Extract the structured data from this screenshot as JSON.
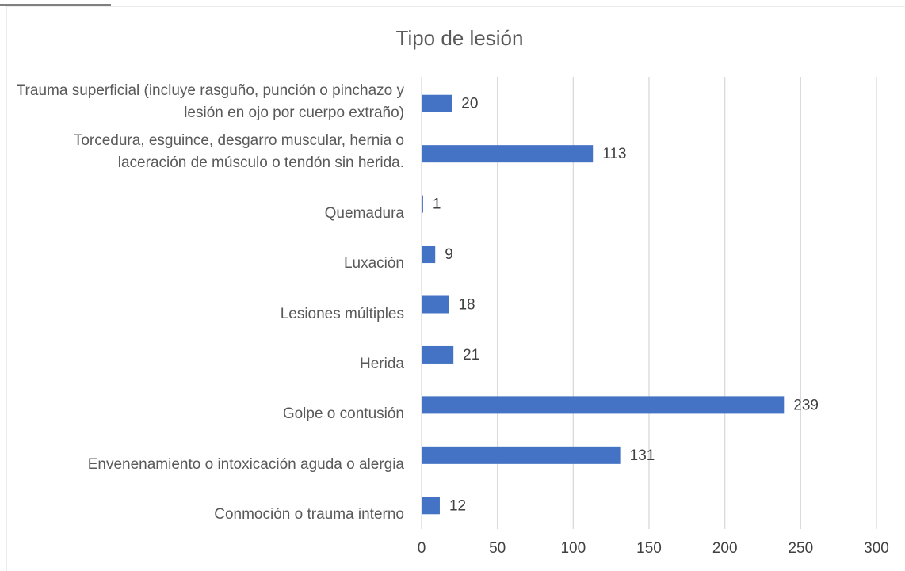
{
  "chart_data": {
    "type": "bar",
    "orientation": "horizontal",
    "title": "Tipo de lesión",
    "categories": [
      "Trauma superficial (incluye rasguño, punción o pinchazo y lesión en ojo por cuerpo extraño)",
      "Torcedura, esguince, desgarro muscular, hernia o laceración de músculo o tendón sin herida.",
      "Quemadura",
      "Luxación",
      "Lesiones múltiples",
      "Herida",
      "Golpe o contusión",
      "Envenenamiento o intoxicación aguda o alergia",
      "Conmoción o trauma interno"
    ],
    "values": [
      20,
      113,
      1,
      9,
      18,
      21,
      239,
      131,
      12
    ],
    "color": "#4472c4",
    "xlim": [
      0,
      300
    ],
    "xticks": [
      0,
      50,
      100,
      150,
      200,
      250,
      300
    ],
    "grid": true
  }
}
